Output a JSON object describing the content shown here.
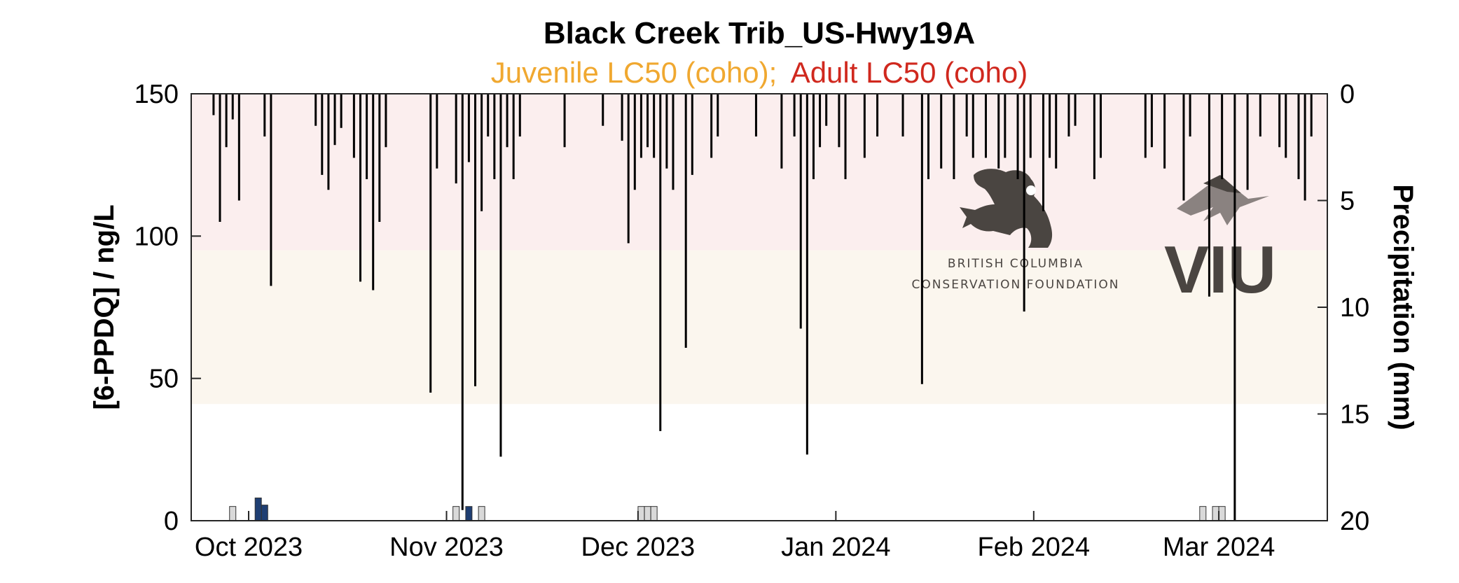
{
  "chart_data": {
    "type": "line",
    "title": "Black Creek Trib_US-Hwy19A",
    "subtitle": {
      "juvenile": "Juvenile LC50 (coho);",
      "adult": "Adult LC50 (coho)"
    },
    "ylabel": "[6-PPDQ] / ng/L",
    "y2label": "Precipitation (mm)",
    "ylim": [
      0,
      150
    ],
    "y2lim": [
      0,
      20
    ],
    "y2_reversed": true,
    "yticks": [
      "0",
      "50",
      "100",
      "150"
    ],
    "y2ticks": [
      "0",
      "5",
      "10",
      "15",
      "20"
    ],
    "xlim": [
      "2023-09-22",
      "2024-03-18"
    ],
    "xticks": [
      {
        "date": "2023-10-01",
        "label": "Oct 2023"
      },
      {
        "date": "2023-11-01",
        "label": "Nov 2023"
      },
      {
        "date": "2023-12-01",
        "label": "Dec 2023"
      },
      {
        "date": "2024-01-01",
        "label": "Jan 2024"
      },
      {
        "date": "2024-02-01",
        "label": "Feb 2024"
      },
      {
        "date": "2024-03-01",
        "label": "Mar 2024"
      }
    ],
    "thresholds": [
      {
        "name": "Juvenile LC50 (coho)",
        "from": 41,
        "to": 95,
        "color": "#f5a623"
      },
      {
        "name": "Adult LC50 (coho)",
        "from": 95,
        "to": 150,
        "color": "#c8281e"
      }
    ],
    "colors": {
      "juvenile": "#f0a830",
      "adult": "#d0281e",
      "juvenile_band": "#fbf6ee",
      "adult_band": "#fbeeee",
      "precip": "#000000",
      "sample_below": "#d9d9d9",
      "sample_above": "#1f3f73"
    },
    "series": [
      {
        "name": "Precipitation",
        "axis": "y2",
        "type": "bar",
        "values": [
          [
            "2023-09-25",
            1.0
          ],
          [
            "2023-09-26",
            6.0
          ],
          [
            "2023-09-27",
            2.5
          ],
          [
            "2023-09-28",
            1.2
          ],
          [
            "2023-09-29",
            5.0
          ],
          [
            "2023-10-03",
            2.0
          ],
          [
            "2023-10-04",
            9.0
          ],
          [
            "2023-10-11",
            1.5
          ],
          [
            "2023-10-12",
            3.8
          ],
          [
            "2023-10-13",
            4.5
          ],
          [
            "2023-10-14",
            2.4
          ],
          [
            "2023-10-15",
            1.6
          ],
          [
            "2023-10-17",
            3.0
          ],
          [
            "2023-10-18",
            8.8
          ],
          [
            "2023-10-19",
            4.0
          ],
          [
            "2023-10-20",
            9.2
          ],
          [
            "2023-10-21",
            6.0
          ],
          [
            "2023-10-22",
            2.5
          ],
          [
            "2023-10-29",
            14.0
          ],
          [
            "2023-10-30",
            3.5
          ],
          [
            "2023-11-02",
            4.2
          ],
          [
            "2023-11-03",
            19.5
          ],
          [
            "2023-11-04",
            3.2
          ],
          [
            "2023-11-05",
            13.7
          ],
          [
            "2023-11-06",
            5.5
          ],
          [
            "2023-11-07",
            2.0
          ],
          [
            "2023-11-08",
            4.0
          ],
          [
            "2023-11-09",
            17.0
          ],
          [
            "2023-11-10",
            2.5
          ],
          [
            "2023-11-11",
            4.0
          ],
          [
            "2023-11-12",
            2.0
          ],
          [
            "2023-11-19",
            2.5
          ],
          [
            "2023-11-25",
            1.5
          ],
          [
            "2023-11-28",
            2.2
          ],
          [
            "2023-11-29",
            7.0
          ],
          [
            "2023-11-30",
            4.5
          ],
          [
            "2023-12-01",
            3.0
          ],
          [
            "2023-12-02",
            2.5
          ],
          [
            "2023-12-03",
            3.0
          ],
          [
            "2023-12-04",
            15.8
          ],
          [
            "2023-12-05",
            3.5
          ],
          [
            "2023-12-06",
            4.5
          ],
          [
            "2023-12-08",
            11.9
          ],
          [
            "2023-12-09",
            3.8
          ],
          [
            "2023-12-12",
            3.0
          ],
          [
            "2023-12-13",
            2.0
          ],
          [
            "2023-12-19",
            2.0
          ],
          [
            "2023-12-23",
            3.5
          ],
          [
            "2023-12-25",
            2.0
          ],
          [
            "2023-12-26",
            11.0
          ],
          [
            "2023-12-27",
            16.9
          ],
          [
            "2023-12-28",
            4.0
          ],
          [
            "2023-12-29",
            2.5
          ],
          [
            "2023-12-30",
            1.5
          ],
          [
            "2024-01-01",
            2.5
          ],
          [
            "2024-01-02",
            4.0
          ],
          [
            "2024-01-05",
            3.0
          ],
          [
            "2024-01-07",
            2.0
          ],
          [
            "2024-01-11",
            2.0
          ],
          [
            "2024-01-14",
            13.6
          ],
          [
            "2024-01-15",
            4.0
          ],
          [
            "2024-01-17",
            3.5
          ],
          [
            "2024-01-19",
            4.0
          ],
          [
            "2024-01-21",
            2.0
          ],
          [
            "2024-01-22",
            3.0
          ],
          [
            "2024-01-24",
            3.0
          ],
          [
            "2024-01-26",
            3.5
          ],
          [
            "2024-01-27",
            3.0
          ],
          [
            "2024-01-29",
            4.0
          ],
          [
            "2024-01-30",
            10.2
          ],
          [
            "2024-01-31",
            3.0
          ],
          [
            "2024-02-02",
            5.5
          ],
          [
            "2024-02-03",
            3.0
          ],
          [
            "2024-02-04",
            3.5
          ],
          [
            "2024-02-06",
            2.0
          ],
          [
            "2024-02-07",
            1.5
          ],
          [
            "2024-02-10",
            4.0
          ],
          [
            "2024-02-11",
            3.0
          ],
          [
            "2024-02-18",
            3.0
          ],
          [
            "2024-02-19",
            2.5
          ],
          [
            "2024-02-21",
            3.5
          ],
          [
            "2024-02-24",
            5.0
          ],
          [
            "2024-02-25",
            2.0
          ],
          [
            "2024-02-28",
            9.5
          ],
          [
            "2024-03-01",
            4.0
          ],
          [
            "2024-03-03",
            20.0
          ],
          [
            "2024-03-05",
            4.5
          ],
          [
            "2024-03-07",
            2.0
          ],
          [
            "2024-03-10",
            2.5
          ],
          [
            "2024-03-11",
            3.0
          ],
          [
            "2024-03-13",
            4.0
          ],
          [
            "2024-03-14",
            5.0
          ],
          [
            "2024-03-15",
            2.0
          ]
        ]
      },
      {
        "name": "6-PPDQ samples",
        "axis": "y",
        "type": "bar",
        "values": [
          [
            "2023-09-28",
            5.0,
            "below"
          ],
          [
            "2023-10-02",
            8.0,
            "above"
          ],
          [
            "2023-10-03",
            5.5,
            "above"
          ],
          [
            "2023-11-02",
            5.0,
            "below"
          ],
          [
            "2023-11-04",
            5.0,
            "above"
          ],
          [
            "2023-11-06",
            5.0,
            "below"
          ],
          [
            "2023-12-01",
            5.0,
            "below"
          ],
          [
            "2023-12-02",
            5.0,
            "below"
          ],
          [
            "2023-12-03",
            5.0,
            "below"
          ],
          [
            "2024-02-27",
            5.0,
            "below"
          ],
          [
            "2024-02-29",
            5.0,
            "below"
          ],
          [
            "2024-03-01",
            5.0,
            "below"
          ]
        ]
      }
    ],
    "grid": false
  },
  "logos": {
    "bccf_line1": "BRITISH COLUMBIA",
    "bccf_line2": "CONSERVATION FOUNDATION",
    "viu": "VIU"
  }
}
